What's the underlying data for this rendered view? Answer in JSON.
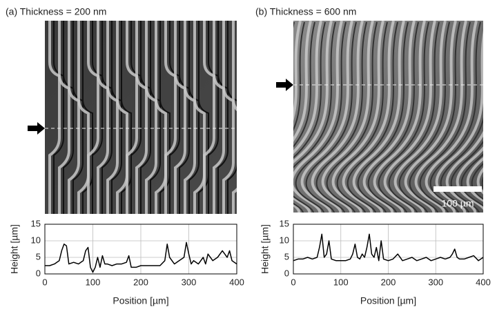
{
  "chart_data": [
    {
      "type": "line",
      "title": "(a) Thickness = 200 nm",
      "xlabel": "Position [µm]",
      "ylabel": "Height [µm]",
      "x": [
        0,
        10,
        20,
        30,
        35,
        40,
        45,
        50,
        60,
        70,
        80,
        85,
        90,
        95,
        100,
        105,
        110,
        115,
        120,
        125,
        130,
        140,
        150,
        160,
        170,
        175,
        180,
        190,
        200,
        220,
        240,
        250,
        255,
        260,
        270,
        280,
        290,
        295,
        300,
        305,
        310,
        320,
        330,
        335,
        340,
        350,
        360,
        370,
        375,
        380,
        385,
        390,
        395,
        400
      ],
      "values": [
        2.5,
        2.5,
        3,
        4,
        7,
        9,
        8.5,
        3,
        3.5,
        3,
        4,
        7,
        8,
        2,
        0.5,
        2,
        5,
        2,
        5.5,
        3,
        3,
        2.5,
        3,
        3,
        3.5,
        5.5,
        2,
        2,
        2.5,
        2.5,
        2.5,
        4,
        9,
        5,
        3,
        4,
        5,
        9.5,
        6,
        3,
        4,
        3,
        5,
        3,
        6,
        4,
        5,
        7,
        6,
        5,
        7,
        4,
        3.5,
        3
      ],
      "color": "#000000",
      "xlim": [
        0,
        400
      ],
      "xticks": [
        0,
        100,
        200,
        300,
        400
      ],
      "ylim": [
        0,
        15
      ],
      "yticks": [
        0,
        5,
        10,
        15
      ],
      "grid": true
    },
    {
      "type": "line",
      "title": "(b) Thickness = 600 nm",
      "xlabel": "Position [µm]",
      "ylabel": "Height [µm]",
      "annotation": "100 µm",
      "x": [
        0,
        10,
        20,
        30,
        40,
        50,
        55,
        60,
        65,
        70,
        75,
        80,
        90,
        100,
        110,
        120,
        125,
        130,
        135,
        140,
        145,
        150,
        155,
        160,
        165,
        170,
        175,
        180,
        185,
        190,
        200,
        210,
        220,
        230,
        240,
        250,
        260,
        270,
        280,
        290,
        300,
        310,
        320,
        330,
        335,
        340,
        345,
        350,
        360,
        370,
        380,
        390,
        400
      ],
      "values": [
        4,
        4.5,
        4.5,
        5,
        4.5,
        5,
        8,
        12,
        5,
        6,
        10,
        4.5,
        4,
        4,
        4,
        4.5,
        6,
        9,
        5,
        4.5,
        6,
        5,
        8,
        12,
        6,
        5,
        8,
        4,
        10,
        4.5,
        4,
        4.5,
        6,
        4,
        4.5,
        5,
        4,
        4.5,
        5,
        4,
        4.5,
        5,
        4.5,
        5,
        6,
        7.5,
        5,
        4.5,
        4.5,
        5,
        5.5,
        4,
        5
      ],
      "color": "#000000",
      "xlim": [
        0,
        400
      ],
      "xticks": [
        0,
        100,
        200,
        300,
        400
      ],
      "ylim": [
        0,
        15
      ],
      "yticks": [
        0,
        5,
        10,
        15
      ],
      "grid": true
    }
  ]
}
